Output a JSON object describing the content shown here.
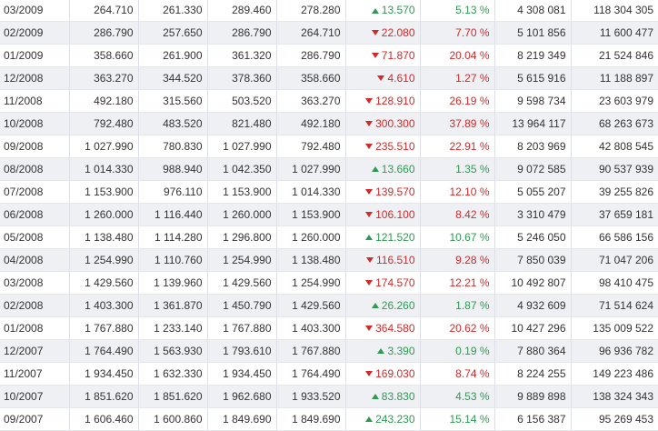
{
  "table": {
    "rows": [
      {
        "date": "03/2009",
        "open": "264.710",
        "low": "261.330",
        "high": "289.460",
        "close": "278.280",
        "change": "13.570",
        "change_pct": "5.13 %",
        "direction": "up",
        "volume": "4 308 081",
        "turnover": "118 304 305"
      },
      {
        "date": "02/2009",
        "open": "286.790",
        "low": "257.650",
        "high": "286.790",
        "close": "264.710",
        "change": "22.080",
        "change_pct": "7.70 %",
        "direction": "down",
        "volume": "5 101 856",
        "turnover": "11 600 477"
      },
      {
        "date": "01/2009",
        "open": "358.660",
        "low": "261.900",
        "high": "361.320",
        "close": "286.790",
        "change": "71.870",
        "change_pct": "20.04 %",
        "direction": "down",
        "volume": "8 219 349",
        "turnover": "21 524 846"
      },
      {
        "date": "12/2008",
        "open": "363.270",
        "low": "344.520",
        "high": "378.360",
        "close": "358.660",
        "change": "4.610",
        "change_pct": "1.27 %",
        "direction": "down",
        "volume": "5 615 916",
        "turnover": "11 188 897"
      },
      {
        "date": "11/2008",
        "open": "492.180",
        "low": "315.560",
        "high": "503.520",
        "close": "363.270",
        "change": "128.910",
        "change_pct": "26.19 %",
        "direction": "down",
        "volume": "9 598 734",
        "turnover": "23 603 979"
      },
      {
        "date": "10/2008",
        "open": "792.480",
        "low": "483.520",
        "high": "821.480",
        "close": "492.180",
        "change": "300.300",
        "change_pct": "37.89 %",
        "direction": "down",
        "volume": "13 964 117",
        "turnover": "68 263 673"
      },
      {
        "date": "09/2008",
        "open": "1 027.990",
        "low": "780.830",
        "high": "1 027.990",
        "close": "792.480",
        "change": "235.510",
        "change_pct": "22.91 %",
        "direction": "down",
        "volume": "8 203 969",
        "turnover": "42 808 545"
      },
      {
        "date": "08/2008",
        "open": "1 014.330",
        "low": "988.940",
        "high": "1 042.350",
        "close": "1 027.990",
        "change": "13.660",
        "change_pct": "1.35 %",
        "direction": "up",
        "volume": "9 072 585",
        "turnover": "90 537 939"
      },
      {
        "date": "07/2008",
        "open": "1 153.900",
        "low": "976.110",
        "high": "1 153.900",
        "close": "1 014.330",
        "change": "139.570",
        "change_pct": "12.10 %",
        "direction": "down",
        "volume": "5 055 207",
        "turnover": "39 255 826"
      },
      {
        "date": "06/2008",
        "open": "1 260.000",
        "low": "1 116.440",
        "high": "1 260.000",
        "close": "1 153.900",
        "change": "106.100",
        "change_pct": "8.42 %",
        "direction": "down",
        "volume": "3 310 479",
        "turnover": "37 659 181"
      },
      {
        "date": "05/2008",
        "open": "1 138.480",
        "low": "1 114.280",
        "high": "1 296.800",
        "close": "1 260.000",
        "change": "121.520",
        "change_pct": "10.67 %",
        "direction": "up",
        "volume": "5 246 050",
        "turnover": "66 586 156"
      },
      {
        "date": "04/2008",
        "open": "1 254.990",
        "low": "1 110.760",
        "high": "1 254.990",
        "close": "1 138.480",
        "change": "116.510",
        "change_pct": "9.28 %",
        "direction": "down",
        "volume": "7 850 039",
        "turnover": "71 047 206"
      },
      {
        "date": "03/2008",
        "open": "1 429.560",
        "low": "1 139.960",
        "high": "1 429.560",
        "close": "1 254.990",
        "change": "174.570",
        "change_pct": "12.21 %",
        "direction": "down",
        "volume": "10 492 807",
        "turnover": "98 410 475"
      },
      {
        "date": "02/2008",
        "open": "1 403.300",
        "low": "1 361.870",
        "high": "1 450.790",
        "close": "1 429.560",
        "change": "26.260",
        "change_pct": "1.87 %",
        "direction": "up",
        "volume": "4 932 609",
        "turnover": "71 514 624"
      },
      {
        "date": "01/2008",
        "open": "1 767.880",
        "low": "1 233.140",
        "high": "1 767.880",
        "close": "1 403.300",
        "change": "364.580",
        "change_pct": "20.62 %",
        "direction": "down",
        "volume": "10 427 296",
        "turnover": "135 009 522"
      },
      {
        "date": "12/2007",
        "open": "1 764.490",
        "low": "1 563.930",
        "high": "1 793.610",
        "close": "1 767.880",
        "change": "3.390",
        "change_pct": "0.19 %",
        "direction": "up",
        "volume": "7 880 364",
        "turnover": "96 936 782"
      },
      {
        "date": "11/2007",
        "open": "1 934.450",
        "low": "1 632.330",
        "high": "1 934.450",
        "close": "1 764.490",
        "change": "169.030",
        "change_pct": "8.74 %",
        "direction": "down",
        "volume": "8 224 255",
        "turnover": "149 223 486"
      },
      {
        "date": "10/2007",
        "open": "1 851.620",
        "low": "1 851.620",
        "high": "1 962.680",
        "close": "1 933.520",
        "change": "83.830",
        "change_pct": "4.53 %",
        "direction": "up",
        "volume": "9 889 898",
        "turnover": "138 324 343"
      },
      {
        "date": "09/2007",
        "open": "1 606.460",
        "low": "1 600.860",
        "high": "1 849.690",
        "close": "1 849.690",
        "change": "243.230",
        "change_pct": "15.14 %",
        "direction": "up",
        "volume": "6 156 387",
        "turnover": "95 269 453"
      }
    ]
  },
  "colors": {
    "positive": "#2e9a52",
    "negative": "#d02a2a",
    "stripe": "#eef0f4"
  }
}
